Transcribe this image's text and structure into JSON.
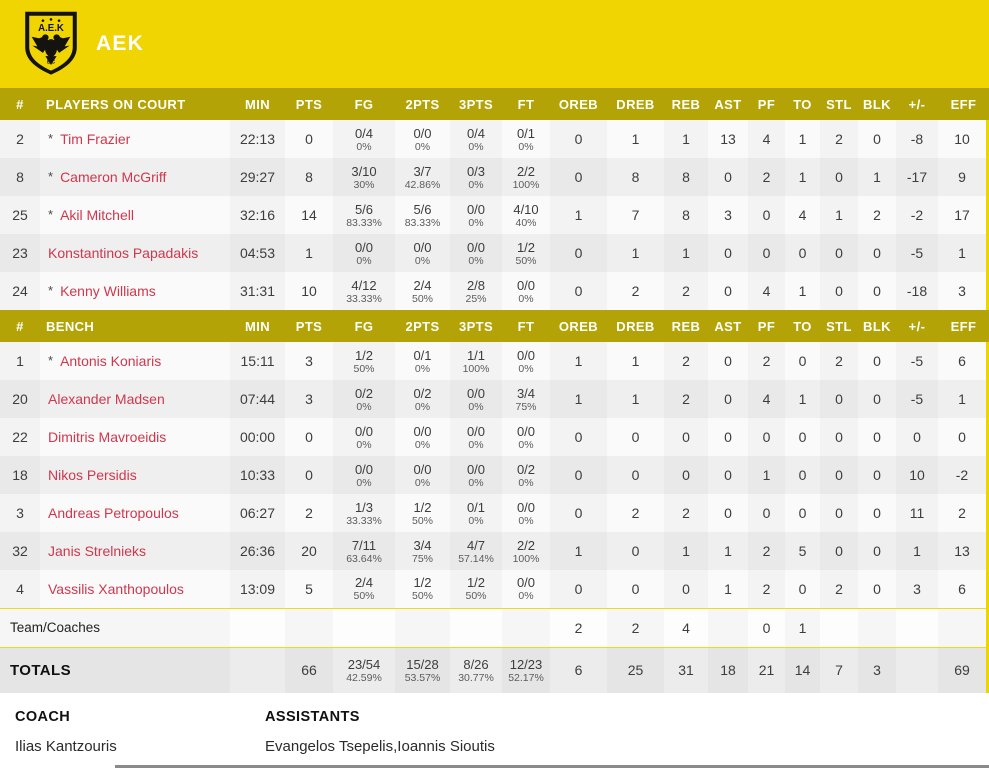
{
  "team": {
    "name": "AEK",
    "logo_top": "A.E.K",
    "logo_bottom": "BC"
  },
  "colors": {
    "banner_yellow": "#F0D502",
    "header_olive": "#B3A307",
    "player_red": "#D0374D",
    "right_strip_yellow": "#EBD600"
  },
  "columns": [
    "#",
    "PLAYERS ON COURT",
    "MIN",
    "PTS",
    "FG",
    "2PTS",
    "3PTS",
    "FT",
    "OREB",
    "DREB",
    "REB",
    "AST",
    "PF",
    "TO",
    "STL",
    "BLK",
    "+/-",
    "EFF"
  ],
  "sections": [
    {
      "label": "PLAYERS ON COURT",
      "players": [
        {
          "num": "2",
          "starter": true,
          "name": "Tim Frazier",
          "min": "22:13",
          "pts": "0",
          "fg": {
            "v": "0/4",
            "pct": "0%"
          },
          "p2": {
            "v": "0/0",
            "pct": "0%"
          },
          "p3": {
            "v": "0/4",
            "pct": "0%"
          },
          "ft": {
            "v": "0/1",
            "pct": "0%"
          },
          "oreb": "0",
          "dreb": "1",
          "reb": "1",
          "ast": "13",
          "pf": "4",
          "to": "1",
          "stl": "2",
          "blk": "0",
          "pm": "-8",
          "eff": "10"
        },
        {
          "num": "8",
          "starter": true,
          "name": "Cameron McGriff",
          "min": "29:27",
          "pts": "8",
          "fg": {
            "v": "3/10",
            "pct": "30%"
          },
          "p2": {
            "v": "3/7",
            "pct": "42.86%"
          },
          "p3": {
            "v": "0/3",
            "pct": "0%"
          },
          "ft": {
            "v": "2/2",
            "pct": "100%"
          },
          "oreb": "0",
          "dreb": "8",
          "reb": "8",
          "ast": "0",
          "pf": "2",
          "to": "1",
          "stl": "0",
          "blk": "1",
          "pm": "-17",
          "eff": "9"
        },
        {
          "num": "25",
          "starter": true,
          "name": "Akil Mitchell",
          "min": "32:16",
          "pts": "14",
          "fg": {
            "v": "5/6",
            "pct": "83.33%"
          },
          "p2": {
            "v": "5/6",
            "pct": "83.33%"
          },
          "p3": {
            "v": "0/0",
            "pct": "0%"
          },
          "ft": {
            "v": "4/10",
            "pct": "40%"
          },
          "oreb": "1",
          "dreb": "7",
          "reb": "8",
          "ast": "3",
          "pf": "0",
          "to": "4",
          "stl": "1",
          "blk": "2",
          "pm": "-2",
          "eff": "17"
        },
        {
          "num": "23",
          "starter": false,
          "name": "Konstantinos Papadakis",
          "min": "04:53",
          "pts": "1",
          "fg": {
            "v": "0/0",
            "pct": "0%"
          },
          "p2": {
            "v": "0/0",
            "pct": "0%"
          },
          "p3": {
            "v": "0/0",
            "pct": "0%"
          },
          "ft": {
            "v": "1/2",
            "pct": "50%"
          },
          "oreb": "0",
          "dreb": "1",
          "reb": "1",
          "ast": "0",
          "pf": "0",
          "to": "0",
          "stl": "0",
          "blk": "0",
          "pm": "-5",
          "eff": "1"
        },
        {
          "num": "24",
          "starter": true,
          "name": "Kenny Williams",
          "min": "31:31",
          "pts": "10",
          "fg": {
            "v": "4/12",
            "pct": "33.33%"
          },
          "p2": {
            "v": "2/4",
            "pct": "50%"
          },
          "p3": {
            "v": "2/8",
            "pct": "25%"
          },
          "ft": {
            "v": "0/0",
            "pct": "0%"
          },
          "oreb": "0",
          "dreb": "2",
          "reb": "2",
          "ast": "0",
          "pf": "4",
          "to": "1",
          "stl": "0",
          "blk": "0",
          "pm": "-18",
          "eff": "3"
        }
      ]
    },
    {
      "label": "BENCH",
      "players": [
        {
          "num": "1",
          "starter": true,
          "name": "Antonis Koniaris",
          "min": "15:11",
          "pts": "3",
          "fg": {
            "v": "1/2",
            "pct": "50%"
          },
          "p2": {
            "v": "0/1",
            "pct": "0%"
          },
          "p3": {
            "v": "1/1",
            "pct": "100%"
          },
          "ft": {
            "v": "0/0",
            "pct": "0%"
          },
          "oreb": "1",
          "dreb": "1",
          "reb": "2",
          "ast": "0",
          "pf": "2",
          "to": "0",
          "stl": "2",
          "blk": "0",
          "pm": "-5",
          "eff": "6"
        },
        {
          "num": "20",
          "starter": false,
          "name": "Alexander Madsen",
          "min": "07:44",
          "pts": "3",
          "fg": {
            "v": "0/2",
            "pct": "0%"
          },
          "p2": {
            "v": "0/2",
            "pct": "0%"
          },
          "p3": {
            "v": "0/0",
            "pct": "0%"
          },
          "ft": {
            "v": "3/4",
            "pct": "75%"
          },
          "oreb": "1",
          "dreb": "1",
          "reb": "2",
          "ast": "0",
          "pf": "4",
          "to": "1",
          "stl": "0",
          "blk": "0",
          "pm": "-5",
          "eff": "1"
        },
        {
          "num": "22",
          "starter": false,
          "name": "Dimitris Mavroeidis",
          "min": "00:00",
          "pts": "0",
          "fg": {
            "v": "0/0",
            "pct": "0%"
          },
          "p2": {
            "v": "0/0",
            "pct": "0%"
          },
          "p3": {
            "v": "0/0",
            "pct": "0%"
          },
          "ft": {
            "v": "0/0",
            "pct": "0%"
          },
          "oreb": "0",
          "dreb": "0",
          "reb": "0",
          "ast": "0",
          "pf": "0",
          "to": "0",
          "stl": "0",
          "blk": "0",
          "pm": "0",
          "eff": "0"
        },
        {
          "num": "18",
          "starter": false,
          "name": "Nikos Persidis",
          "min": "10:33",
          "pts": "0",
          "fg": {
            "v": "0/0",
            "pct": "0%"
          },
          "p2": {
            "v": "0/0",
            "pct": "0%"
          },
          "p3": {
            "v": "0/0",
            "pct": "0%"
          },
          "ft": {
            "v": "0/2",
            "pct": "0%"
          },
          "oreb": "0",
          "dreb": "0",
          "reb": "0",
          "ast": "0",
          "pf": "1",
          "to": "0",
          "stl": "0",
          "blk": "0",
          "pm": "10",
          "eff": "-2"
        },
        {
          "num": "3",
          "starter": false,
          "name": "Andreas Petropoulos",
          "min": "06:27",
          "pts": "2",
          "fg": {
            "v": "1/3",
            "pct": "33.33%"
          },
          "p2": {
            "v": "1/2",
            "pct": "50%"
          },
          "p3": {
            "v": "0/1",
            "pct": "0%"
          },
          "ft": {
            "v": "0/0",
            "pct": "0%"
          },
          "oreb": "0",
          "dreb": "2",
          "reb": "2",
          "ast": "0",
          "pf": "0",
          "to": "0",
          "stl": "0",
          "blk": "0",
          "pm": "11",
          "eff": "2"
        },
        {
          "num": "32",
          "starter": false,
          "name": "Janis Strelnieks",
          "min": "26:36",
          "pts": "20",
          "fg": {
            "v": "7/11",
            "pct": "63.64%"
          },
          "p2": {
            "v": "3/4",
            "pct": "75%"
          },
          "p3": {
            "v": "4/7",
            "pct": "57.14%"
          },
          "ft": {
            "v": "2/2",
            "pct": "100%"
          },
          "oreb": "1",
          "dreb": "0",
          "reb": "1",
          "ast": "1",
          "pf": "2",
          "to": "5",
          "stl": "0",
          "blk": "0",
          "pm": "1",
          "eff": "13"
        },
        {
          "num": "4",
          "starter": false,
          "name": "Vassilis Xanthopoulos",
          "min": "13:09",
          "pts": "5",
          "fg": {
            "v": "2/4",
            "pct": "50%"
          },
          "p2": {
            "v": "1/2",
            "pct": "50%"
          },
          "p3": {
            "v": "1/2",
            "pct": "50%"
          },
          "ft": {
            "v": "0/0",
            "pct": "0%"
          },
          "oreb": "0",
          "dreb": "0",
          "reb": "0",
          "ast": "1",
          "pf": "2",
          "to": "0",
          "stl": "2",
          "blk": "0",
          "pm": "3",
          "eff": "6"
        }
      ]
    }
  ],
  "team_coaches": {
    "label": "Team/Coaches",
    "min": "",
    "pts": "",
    "fg": {
      "v": "",
      "pct": ""
    },
    "p2": {
      "v": "",
      "pct": ""
    },
    "p3": {
      "v": "",
      "pct": ""
    },
    "ft": {
      "v": "",
      "pct": ""
    },
    "oreb": "2",
    "dreb": "2",
    "reb": "4",
    "ast": "",
    "pf": "0",
    "to": "1",
    "stl": "",
    "blk": "",
    "pm": "",
    "eff": ""
  },
  "totals": {
    "label": "TOTALS",
    "min": "",
    "pts": "66",
    "fg": {
      "v": "23/54",
      "pct": "42.59%"
    },
    "p2": {
      "v": "15/28",
      "pct": "53.57%"
    },
    "p3": {
      "v": "8/26",
      "pct": "30.77%"
    },
    "ft": {
      "v": "12/23",
      "pct": "52.17%"
    },
    "oreb": "6",
    "dreb": "25",
    "reb": "31",
    "ast": "18",
    "pf": "21",
    "to": "14",
    "stl": "7",
    "blk": "3",
    "pm": "",
    "eff": "69"
  },
  "footer": {
    "coach_label": "COACH",
    "coach_name": "Ilias Kantzouris",
    "assistants_label": "ASSISTANTS",
    "assistants_names": "Evangelos Tsepelis,Ioannis Sioutis"
  }
}
